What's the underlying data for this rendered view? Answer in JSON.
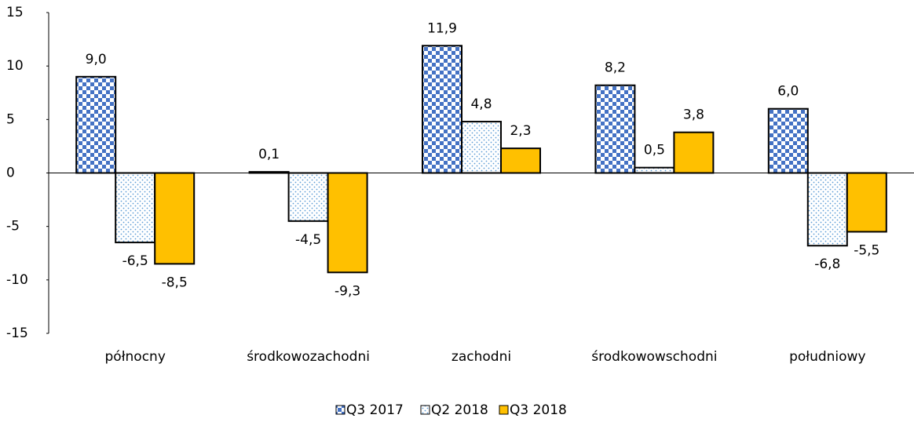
{
  "chart_data": {
    "type": "bar",
    "categories": [
      "północny",
      "środkowozachodni",
      "zachodni",
      "środkowowschodni",
      "południowy"
    ],
    "series": [
      {
        "name": "Q3 2017",
        "color": "#4472c4",
        "values": [
          9.0,
          0.1,
          11.9,
          8.2,
          6.0
        ],
        "value_labels": [
          "9,0",
          "0,1",
          "11,9",
          "8,2",
          "6,0"
        ]
      },
      {
        "name": "Q2 2018",
        "color": "#5b9bd5",
        "values": [
          -6.5,
          -4.5,
          4.8,
          0.5,
          -6.8
        ],
        "value_labels": [
          "-6,5",
          "-4,5",
          "4,8",
          "0,5",
          "-6,8"
        ]
      },
      {
        "name": "Q3 2018",
        "color": "#ffc000",
        "values": [
          -8.5,
          -9.3,
          2.3,
          3.8,
          -5.5
        ],
        "value_labels": [
          "-8,5",
          "-9,3",
          "2,3",
          "3,8",
          "-5,5"
        ]
      }
    ],
    "ylim": [
      -15,
      15
    ],
    "yticks": [
      -15,
      -10,
      -5,
      0,
      5,
      10,
      15
    ],
    "grid": false,
    "legend": "bottom"
  }
}
